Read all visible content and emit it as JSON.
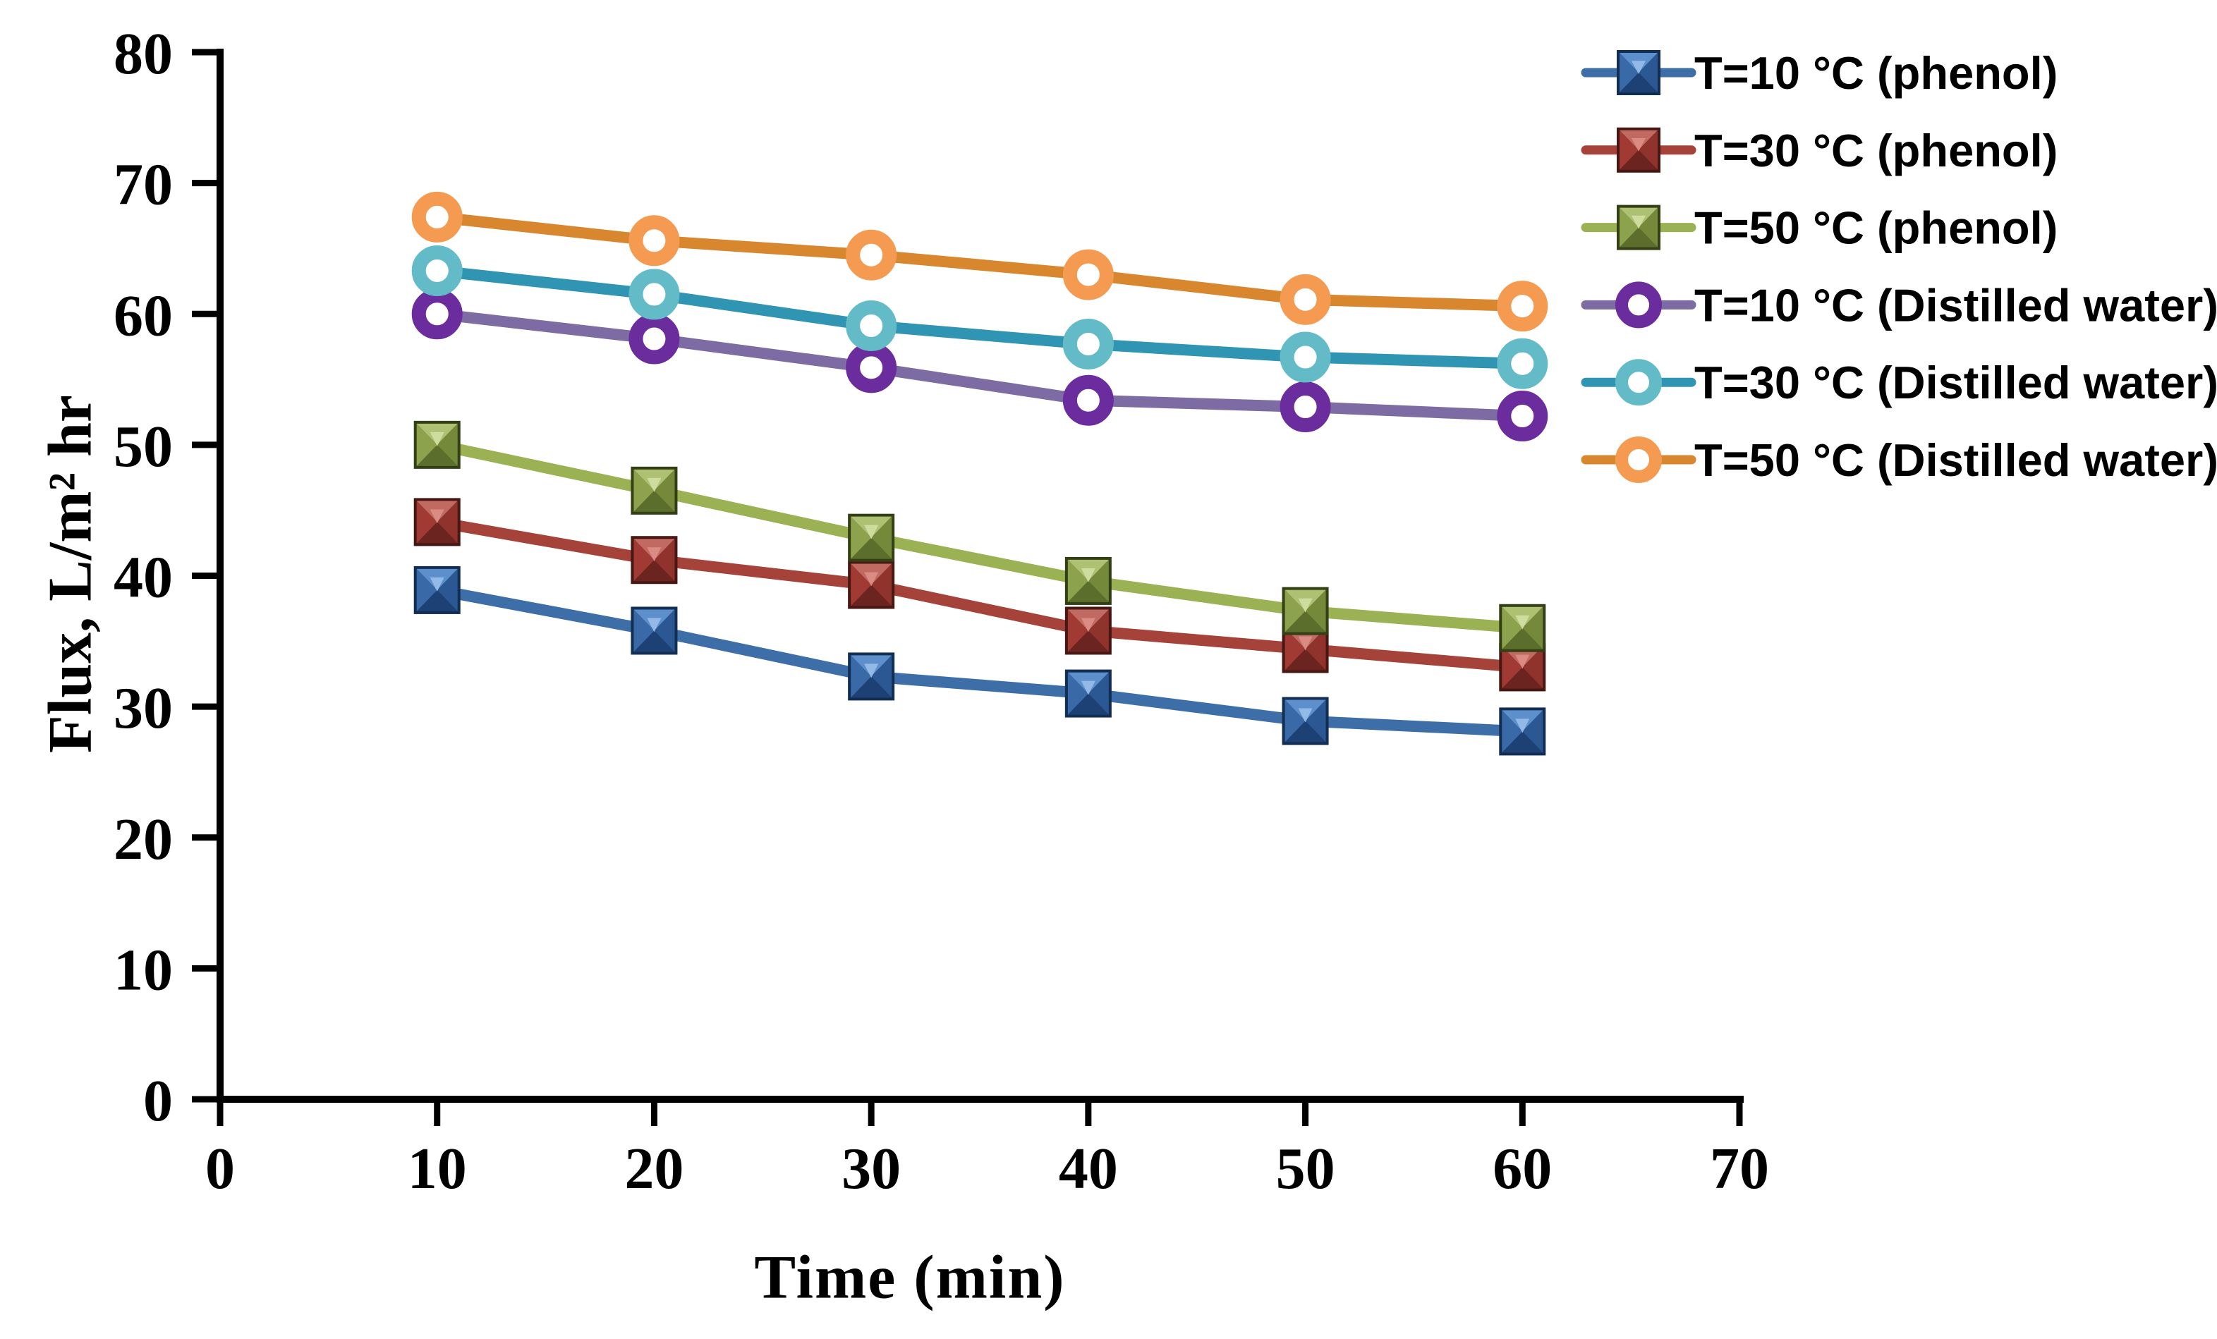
{
  "chart_data": {
    "type": "line",
    "title": "",
    "xlabel": "Time (min)",
    "ylabel": "Flux, L/m² hr",
    "xlim": [
      0,
      70
    ],
    "ylim": [
      0,
      80
    ],
    "x_ticks": [
      "0",
      "10",
      "20",
      "30",
      "40",
      "50",
      "60",
      "70"
    ],
    "y_ticks": [
      "0",
      "10",
      "20",
      "30",
      "40",
      "50",
      "60",
      "70",
      "80"
    ],
    "x_tick_values": [
      0,
      10,
      20,
      30,
      40,
      50,
      60,
      70
    ],
    "y_tick_values": [
      0,
      10,
      20,
      30,
      40,
      50,
      60,
      70,
      80
    ],
    "grid": false,
    "legend_position": "upper-right",
    "axis_color": "#000000",
    "x": [
      10,
      20,
      30,
      40,
      50,
      60
    ],
    "series": [
      {
        "name": "T=10 °C (phenol)",
        "marker": "square",
        "line_color": "#3E6EA8",
        "marker_color": "#3E6FB0",
        "bevel": {
          "frame": "#122E52",
          "top": "#5C8FCB",
          "right": "#2B5793",
          "bottom": "#1E4175",
          "left": "#3A69A8",
          "highlight": "#9CC2EC"
        },
        "values": [
          38.9,
          35.8,
          32.3,
          31.0,
          28.9,
          28.1
        ]
      },
      {
        "name": "T=30 °C (phenol)",
        "marker": "square",
        "line_color": "#A5433B",
        "marker_color": "#A03A33",
        "bevel": {
          "frame": "#471713",
          "top": "#C06A62",
          "right": "#8F332C",
          "bottom": "#6B241F",
          "left": "#A03A33",
          "highlight": "#DE9189"
        },
        "values": [
          44.1,
          41.2,
          39.3,
          35.8,
          34.4,
          33.0
        ]
      },
      {
        "name": "T=50 °C (phenol)",
        "marker": "square",
        "line_color": "#9AB254",
        "marker_color": "#89A14B",
        "bevel": {
          "frame": "#333F14",
          "top": "#AEC173",
          "right": "#75893B",
          "bottom": "#5C6E2B",
          "left": "#8CA24D",
          "highlight": "#D3E0A4"
        },
        "values": [
          50.0,
          46.5,
          42.9,
          39.6,
          37.3,
          36.0
        ]
      },
      {
        "name": "T=10 °C (Distilled water)",
        "marker": "circle",
        "line_color": "#7D6BA3",
        "marker_color": "#6B2D9E",
        "values": [
          60.0,
          58.1,
          55.9,
          53.4,
          52.9,
          52.2
        ]
      },
      {
        "name": "T=30 °C (Distilled water)",
        "marker": "circle",
        "line_color": "#3095B2",
        "marker_color": "#62BBC7",
        "values": [
          63.3,
          61.5,
          59.1,
          57.7,
          56.7,
          56.2
        ]
      },
      {
        "name": "T=50 °C (Distilled water)",
        "marker": "circle",
        "line_color": "#D9872F",
        "marker_color": "#F59B51",
        "values": [
          67.4,
          65.6,
          64.5,
          63.0,
          61.1,
          60.6
        ]
      }
    ]
  }
}
